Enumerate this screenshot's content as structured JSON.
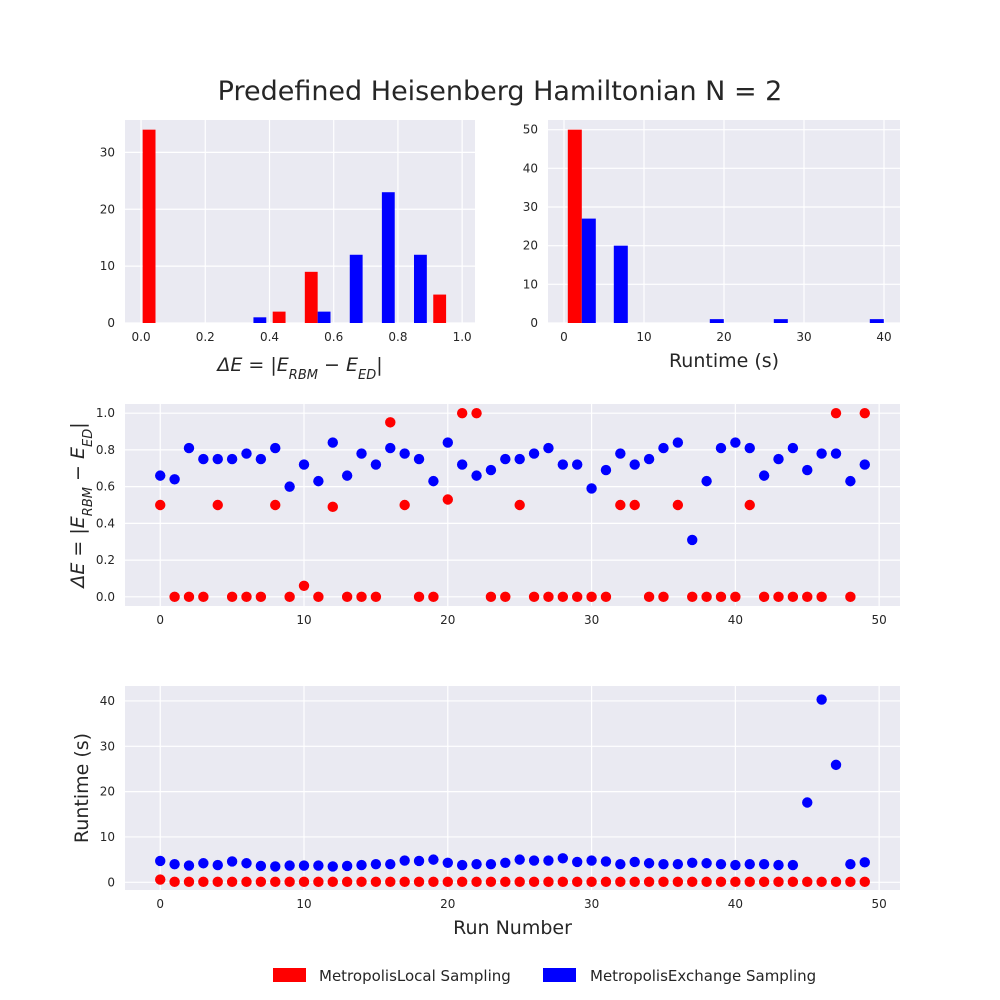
{
  "chart_data": {
    "title": "Predefined Heisenberg Hamiltonian N = 2",
    "colors": {
      "local": "#ff0000",
      "exchange": "#0000ff",
      "panel": "#eaeaf2",
      "grid": "#ffffff"
    },
    "legend": {
      "placement": "bottom-center",
      "entries": [
        {
          "name": "MetropolisLocal Sampling",
          "color": "#ff0000"
        },
        {
          "name": "MetropolisExchange Sampling",
          "color": "#0000ff"
        }
      ]
    },
    "panels": [
      {
        "id": "hist_energy",
        "type": "bar",
        "xlabel_parts": [
          "ΔE = |E",
          "RBM",
          " − E",
          "ED",
          "|"
        ],
        "xlim": [
          -0.05,
          1.04
        ],
        "ylim": [
          0,
          35.7
        ],
        "xticks": [
          0.0,
          0.2,
          0.4,
          0.6,
          0.8,
          1.0
        ],
        "xtick_labels": [
          "0.0",
          "0.2",
          "0.4",
          "0.6",
          "0.8",
          "1.0"
        ],
        "yticks": [
          0,
          10,
          20,
          30
        ],
        "ytick_labels": [
          "0",
          "10",
          "20",
          "30"
        ],
        "bar_width": 0.04,
        "series": [
          {
            "name": "MetropolisLocal Sampling",
            "color": "#ff0000",
            "bins": [
              0.025,
              0.43,
              0.53,
              0.93
            ],
            "values": [
              34,
              2,
              9,
              5
            ]
          },
          {
            "name": "MetropolisExchange Sampling",
            "color": "#0000ff",
            "bins": [
              0.37,
              0.57,
              0.67,
              0.77,
              0.87
            ],
            "values": [
              1,
              2,
              12,
              23,
              12
            ]
          }
        ]
      },
      {
        "id": "hist_runtime",
        "type": "bar",
        "xlabel": "Runtime (s)",
        "xlim": [
          -2,
          42
        ],
        "ylim": [
          0,
          52.5
        ],
        "xticks": [
          0,
          10,
          20,
          30,
          40
        ],
        "xtick_labels": [
          "0",
          "10",
          "20",
          "30",
          "40"
        ],
        "yticks": [
          0,
          10,
          20,
          30,
          40,
          50
        ],
        "ytick_labels": [
          "0",
          "10",
          "20",
          "30",
          "40",
          "50"
        ],
        "bar_width": 1.75,
        "series": [
          {
            "name": "MetropolisLocal Sampling",
            "color": "#ff0000",
            "bins": [
              1.35
            ],
            "values": [
              50
            ]
          },
          {
            "name": "MetropolisExchange Sampling",
            "color": "#0000ff",
            "bins": [
              3.1,
              7.1,
              19.1,
              27.1,
              39.1
            ],
            "values": [
              27,
              20,
              1,
              1,
              1
            ]
          }
        ]
      },
      {
        "id": "scatter_energy",
        "type": "scatter",
        "ylabel_parts": [
          "ΔE = |E",
          "RBM",
          " − E",
          "ED",
          "|"
        ],
        "xlim": [
          -2.45,
          51.45
        ],
        "ylim": [
          -0.05,
          1.05
        ],
        "xticks": [
          0,
          10,
          20,
          30,
          40,
          50
        ],
        "xtick_labels": [
          "0",
          "10",
          "20",
          "30",
          "40",
          "50"
        ],
        "yticks": [
          0.0,
          0.2,
          0.4,
          0.6,
          0.8,
          1.0
        ],
        "ytick_labels": [
          "0.0",
          "0.2",
          "0.4",
          "0.6",
          "0.8",
          "1.0"
        ],
        "series": [
          {
            "name": "MetropolisLocal Sampling",
            "color": "#ff0000",
            "x": [
              0,
              1,
              2,
              3,
              4,
              5,
              6,
              7,
              8,
              9,
              10,
              11,
              12,
              13,
              14,
              15,
              16,
              17,
              18,
              19,
              20,
              21,
              22,
              23,
              24,
              25,
              26,
              27,
              28,
              29,
              30,
              31,
              32,
              33,
              34,
              35,
              36,
              37,
              38,
              39,
              40,
              41,
              42,
              43,
              44,
              45,
              46,
              47,
              48,
              49
            ],
            "y": [
              0.5,
              0,
              0,
              0,
              0.5,
              0,
              0,
              0,
              0.5,
              0,
              0.06,
              0,
              0.49,
              0,
              0,
              0,
              0.95,
              0.5,
              0,
              0,
              0.53,
              1.0,
              1.0,
              0,
              0,
              0.5,
              0,
              0,
              0,
              0,
              0,
              0,
              0.5,
              0.5,
              0,
              0,
              0.5,
              0,
              0,
              0,
              0,
              0.5,
              0,
              0,
              0,
              0,
              0,
              1.0,
              0,
              1.0
            ]
          },
          {
            "name": "MetropolisExchange Sampling",
            "color": "#0000ff",
            "x": [
              0,
              1,
              2,
              3,
              4,
              5,
              6,
              7,
              8,
              9,
              10,
              11,
              12,
              13,
              14,
              15,
              16,
              17,
              18,
              19,
              20,
              21,
              22,
              23,
              24,
              25,
              26,
              27,
              28,
              29,
              30,
              31,
              32,
              33,
              34,
              35,
              36,
              37,
              38,
              39,
              40,
              41,
              42,
              43,
              44,
              45,
              46,
              47,
              48,
              49
            ],
            "y": [
              0.66,
              0.64,
              0.81,
              0.75,
              0.75,
              0.75,
              0.78,
              0.75,
              0.81,
              0.6,
              0.72,
              0.63,
              0.84,
              0.66,
              0.78,
              0.72,
              0.81,
              0.78,
              0.75,
              0.63,
              0.84,
              0.72,
              0.66,
              0.69,
              0.75,
              0.75,
              0.78,
              0.81,
              0.72,
              0.72,
              0.59,
              0.69,
              0.78,
              0.72,
              0.75,
              0.81,
              0.84,
              0.31,
              0.63,
              0.81,
              0.84,
              0.81,
              0.66,
              0.75,
              0.81,
              0.69,
              0.78,
              0.78,
              0.63,
              0.72
            ]
          }
        ]
      },
      {
        "id": "scatter_runtime",
        "type": "scatter",
        "xlabel": "Run Number",
        "ylabel": "Runtime (s)",
        "xlim": [
          -2.45,
          51.45
        ],
        "ylim": [
          -1.7,
          43.3
        ],
        "xticks": [
          0,
          10,
          20,
          30,
          40,
          50
        ],
        "xtick_labels": [
          "0",
          "10",
          "20",
          "30",
          "40",
          "50"
        ],
        "yticks": [
          0,
          10,
          20,
          30,
          40
        ],
        "ytick_labels": [
          "0",
          "10",
          "20",
          "30",
          "40"
        ],
        "series": [
          {
            "name": "MetropolisLocal Sampling",
            "color": "#ff0000",
            "x": [
              0,
              1,
              2,
              3,
              4,
              5,
              6,
              7,
              8,
              9,
              10,
              11,
              12,
              13,
              14,
              15,
              16,
              17,
              18,
              19,
              20,
              21,
              22,
              23,
              24,
              25,
              26,
              27,
              28,
              29,
              30,
              31,
              32,
              33,
              34,
              35,
              36,
              37,
              38,
              39,
              40,
              41,
              42,
              43,
              44,
              45,
              46,
              47,
              48,
              49
            ],
            "y": [
              0.6,
              0.1,
              0.1,
              0.1,
              0.1,
              0.1,
              0.1,
              0.1,
              0.1,
              0.1,
              0.1,
              0.1,
              0.1,
              0.1,
              0.1,
              0.1,
              0.1,
              0.1,
              0.1,
              0.1,
              0.1,
              0.1,
              0.1,
              0.1,
              0.1,
              0.1,
              0.1,
              0.1,
              0.1,
              0.1,
              0.1,
              0.1,
              0.1,
              0.1,
              0.1,
              0.1,
              0.1,
              0.1,
              0.1,
              0.1,
              0.1,
              0.1,
              0.1,
              0.1,
              0.1,
              0.1,
              0.1,
              0.1,
              0.1,
              0.1
            ]
          },
          {
            "name": "MetropolisExchange Sampling",
            "color": "#0000ff",
            "x": [
              0,
              1,
              2,
              3,
              4,
              5,
              6,
              7,
              8,
              9,
              10,
              11,
              12,
              13,
              14,
              15,
              16,
              17,
              18,
              19,
              20,
              21,
              22,
              23,
              24,
              25,
              26,
              27,
              28,
              29,
              30,
              31,
              32,
              33,
              34,
              35,
              36,
              37,
              38,
              39,
              40,
              41,
              42,
              43,
              44,
              45,
              46,
              47,
              48,
              49
            ],
            "y": [
              4.7,
              4.0,
              3.7,
              4.2,
              3.8,
              4.6,
              4.2,
              3.6,
              3.5,
              3.7,
              3.7,
              3.7,
              3.5,
              3.6,
              3.8,
              4.0,
              4.0,
              4.8,
              4.7,
              5.0,
              4.3,
              3.8,
              4.0,
              4.0,
              4.3,
              5.0,
              4.8,
              4.8,
              5.3,
              4.5,
              4.8,
              4.6,
              4.0,
              4.5,
              4.2,
              4.0,
              4.0,
              4.3,
              4.2,
              4.0,
              3.8,
              4.0,
              4.0,
              3.8,
              3.8,
              17.6,
              40.3,
              25.9,
              4.0,
              4.4
            ]
          }
        ]
      }
    ]
  }
}
